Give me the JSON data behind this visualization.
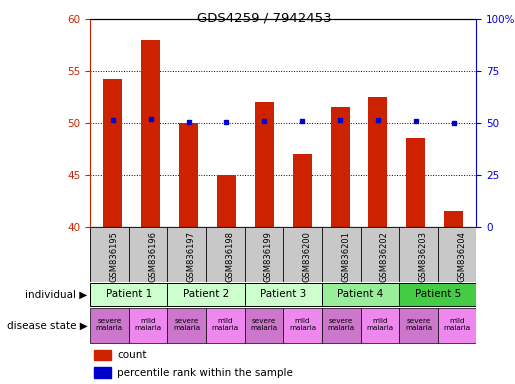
{
  "title": "GDS4259 / 7942453",
  "samples": [
    "GSM836195",
    "GSM836196",
    "GSM836197",
    "GSM836198",
    "GSM836199",
    "GSM836200",
    "GSM836201",
    "GSM836202",
    "GSM836203",
    "GSM836204"
  ],
  "counts": [
    54.2,
    58.0,
    50.0,
    45.0,
    52.0,
    47.0,
    51.5,
    52.5,
    48.5,
    41.5
  ],
  "percentile_ranks": [
    51.5,
    52.0,
    50.5,
    50.5,
    51.0,
    51.0,
    51.5,
    51.5,
    51.0,
    50.0
  ],
  "ylim_left": [
    40,
    60
  ],
  "ylim_right": [
    0,
    100
  ],
  "yticks_left": [
    40,
    45,
    50,
    55,
    60
  ],
  "yticks_right": [
    0,
    25,
    50,
    75,
    100
  ],
  "ytick_labels_right": [
    "0",
    "25",
    "50",
    "75",
    "100%"
  ],
  "bar_color": "#cc2200",
  "dot_color": "#0000cc",
  "patients": [
    {
      "label": "Patient 1",
      "cols": [
        0,
        1
      ],
      "color": "#ccffcc"
    },
    {
      "label": "Patient 2",
      "cols": [
        2,
        3
      ],
      "color": "#ccffcc"
    },
    {
      "label": "Patient 3",
      "cols": [
        4,
        5
      ],
      "color": "#ccffcc"
    },
    {
      "label": "Patient 4",
      "cols": [
        6,
        7
      ],
      "color": "#99ee99"
    },
    {
      "label": "Patient 5",
      "cols": [
        8,
        9
      ],
      "color": "#44cc44"
    }
  ],
  "disease_states": [
    {
      "label": "severe\nmalaria",
      "col": 0,
      "color": "#cc77cc"
    },
    {
      "label": "mild\nmalaria",
      "col": 1,
      "color": "#ee88ee"
    },
    {
      "label": "severe\nmalaria",
      "col": 2,
      "color": "#cc77cc"
    },
    {
      "label": "mild\nmalaria",
      "col": 3,
      "color": "#ee88ee"
    },
    {
      "label": "severe\nmalaria",
      "col": 4,
      "color": "#cc77cc"
    },
    {
      "label": "mild\nmalaria",
      "col": 5,
      "color": "#ee88ee"
    },
    {
      "label": "severe\nmalaria",
      "col": 6,
      "color": "#cc77cc"
    },
    {
      "label": "mild\nmalaria",
      "col": 7,
      "color": "#ee88ee"
    },
    {
      "label": "severe\nmalaria",
      "col": 8,
      "color": "#cc77cc"
    },
    {
      "label": "mild\nmalaria",
      "col": 9,
      "color": "#ee88ee"
    }
  ],
  "individual_label": "individual",
  "disease_state_label": "disease state",
  "legend_count_label": "count",
  "legend_percentile_label": "percentile rank within the sample",
  "bar_width": 0.5,
  "axis_label_color_left": "#cc2200",
  "axis_label_color_right": "#0000cc",
  "sample_box_color": "#c8c8c8"
}
